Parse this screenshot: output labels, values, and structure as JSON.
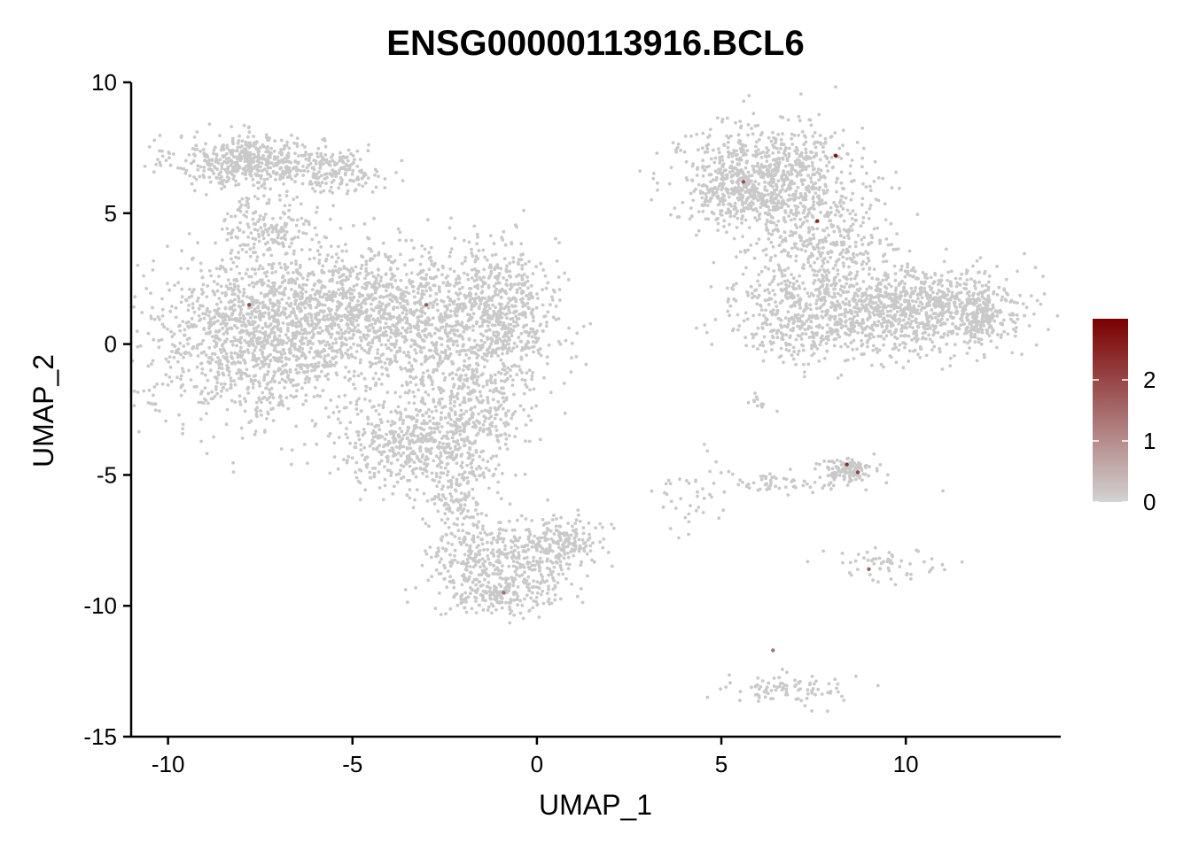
{
  "chart_data": {
    "type": "scatter",
    "title": "ENSG00000113916.BCL6",
    "xlabel": "UMAP_1",
    "ylabel": "UMAP_2",
    "xlim": [
      -11,
      14.2
    ],
    "ylim": [
      -15,
      10
    ],
    "x_ticks": [
      -10,
      -5,
      0,
      5,
      10
    ],
    "y_ticks": [
      -15,
      -10,
      -5,
      0,
      5,
      10
    ],
    "x_tick_labels": [
      "-10",
      "-5",
      "0",
      "5",
      "10"
    ],
    "y_tick_labels": [
      "-15",
      "-10",
      "-5",
      "0",
      "5",
      "10"
    ],
    "grid": false,
    "legend": {
      "placement": "right",
      "type": "colorbar",
      "min": 0,
      "max": 3,
      "ticks": [
        0,
        1,
        2
      ],
      "tick_labels": [
        "0",
        "1",
        "2"
      ],
      "low_color": "#d3d3d3",
      "high_color": "#7a0000"
    },
    "point_color_background": "#c9c9c9",
    "clusters": [
      {
        "cx": -7.8,
        "cy": 7.0,
        "sx": 1.0,
        "sy": 0.5,
        "n": 500
      },
      {
        "cx": -5.4,
        "cy": 6.6,
        "sx": 0.6,
        "sy": 0.4,
        "n": 160
      },
      {
        "cx": -7.3,
        "cy": 4.6,
        "sx": 0.6,
        "sy": 0.6,
        "n": 150
      },
      {
        "cx": -7.5,
        "cy": 0.3,
        "sx": 1.5,
        "sy": 1.6,
        "n": 1400
      },
      {
        "cx": -4.6,
        "cy": 1.5,
        "sx": 1.2,
        "sy": 1.2,
        "n": 700
      },
      {
        "cx": -2.0,
        "cy": 0.6,
        "sx": 1.3,
        "sy": 1.5,
        "n": 800
      },
      {
        "cx": -0.8,
        "cy": 1.5,
        "sx": 0.6,
        "sy": 1.0,
        "n": 250
      },
      {
        "cx": -3.4,
        "cy": -3.8,
        "sx": 1.0,
        "sy": 0.9,
        "n": 500
      },
      {
        "cx": -1.6,
        "cy": -2.8,
        "sx": 0.6,
        "sy": 1.2,
        "n": 250
      },
      {
        "cx": -2.1,
        "cy": -6.0,
        "sx": 0.4,
        "sy": 0.8,
        "n": 120
      },
      {
        "cx": -0.9,
        "cy": -8.2,
        "sx": 1.0,
        "sy": 0.7,
        "n": 420
      },
      {
        "cx": -1.0,
        "cy": -9.6,
        "sx": 0.8,
        "sy": 0.4,
        "n": 180
      },
      {
        "cx": 0.8,
        "cy": -7.5,
        "sx": 0.5,
        "sy": 0.5,
        "n": 120
      },
      {
        "cx": 6.3,
        "cy": 6.3,
        "sx": 1.2,
        "sy": 1.0,
        "n": 800
      },
      {
        "cx": 5.2,
        "cy": 5.8,
        "sx": 0.6,
        "sy": 0.6,
        "n": 150
      },
      {
        "cx": 7.7,
        "cy": 3.6,
        "sx": 1.0,
        "sy": 0.9,
        "n": 350
      },
      {
        "cx": 7.8,
        "cy": 1.0,
        "sx": 1.3,
        "sy": 0.8,
        "n": 600
      },
      {
        "cx": 10.6,
        "cy": 1.4,
        "sx": 1.3,
        "sy": 0.8,
        "n": 700
      },
      {
        "cx": 12.0,
        "cy": 1.0,
        "sx": 0.4,
        "sy": 0.4,
        "n": 120
      },
      {
        "cx": 8.4,
        "cy": -4.8,
        "sx": 0.35,
        "sy": 0.2,
        "n": 120
      },
      {
        "cx": 6.5,
        "cy": -5.3,
        "sx": 1.2,
        "sy": 0.2,
        "n": 70
      },
      {
        "cx": 9.5,
        "cy": -8.5,
        "sx": 1.0,
        "sy": 0.35,
        "n": 55
      },
      {
        "cx": 4.2,
        "cy": -6.1,
        "sx": 0.5,
        "sy": 0.8,
        "n": 35
      },
      {
        "cx": 6.1,
        "cy": -2.2,
        "sx": 0.2,
        "sy": 0.2,
        "n": 12
      },
      {
        "cx": 6.7,
        "cy": -13.2,
        "sx": 0.9,
        "sy": 0.3,
        "n": 90
      }
    ],
    "expressing_cells": [
      {
        "x": 8.1,
        "y": 7.2,
        "value": 2.8
      },
      {
        "x": 7.6,
        "y": 4.7,
        "value": 2.5
      },
      {
        "x": 8.4,
        "y": -4.6,
        "value": 2.3
      },
      {
        "x": 8.7,
        "y": -4.9,
        "value": 2.1
      },
      {
        "x": -7.8,
        "y": 1.5,
        "value": 2.0
      },
      {
        "x": 5.6,
        "y": 6.2,
        "value": 1.9
      },
      {
        "x": -3.0,
        "y": 1.5,
        "value": 1.8
      },
      {
        "x": 9.0,
        "y": -8.6,
        "value": 1.6
      },
      {
        "x": -0.9,
        "y": -9.5,
        "value": 1.5
      },
      {
        "x": 6.4,
        "y": -11.7,
        "value": 1.4
      }
    ]
  }
}
